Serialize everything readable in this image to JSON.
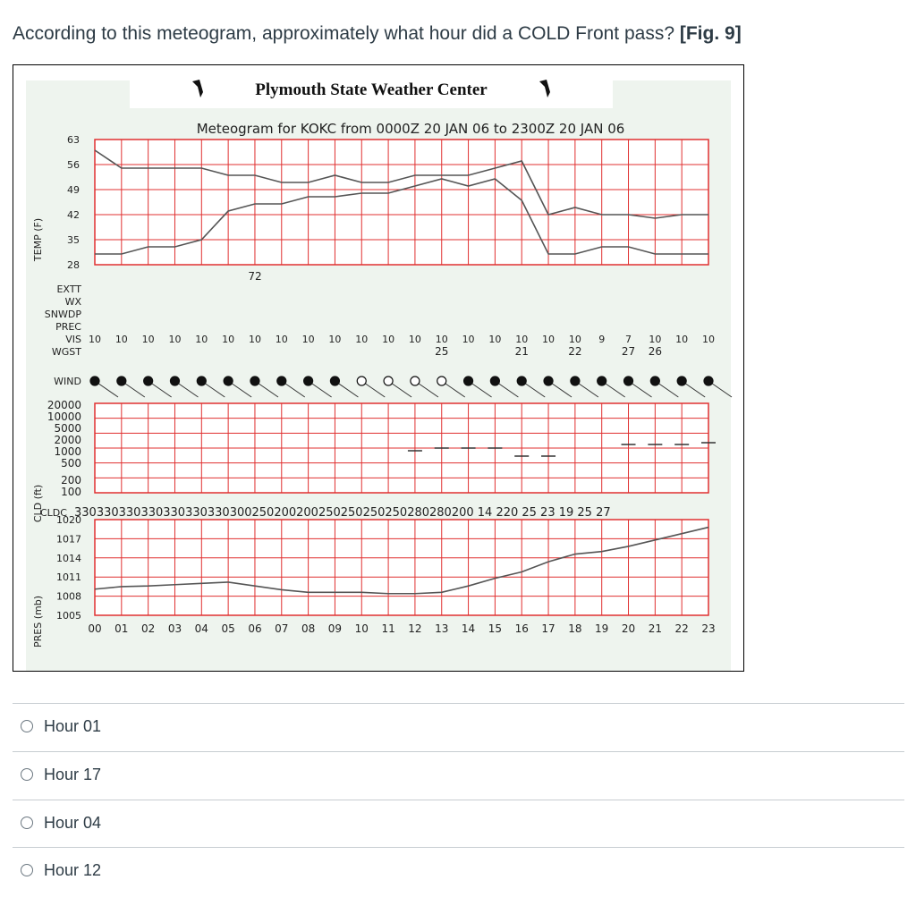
{
  "question": {
    "text": "According to this meteogram, approximately what hour did a COLD Front pass?",
    "ref": "[Fig. 9]"
  },
  "figure": {
    "header": "Plymouth State Weather Center",
    "title": "Meteogram for KOKC from 0000Z 20 JAN 06 to 2300Z 20 JAN 06",
    "temp_axis_label": "TEMP (F)",
    "temp_ticks": [
      "63",
      "56",
      "49",
      "42",
      "35",
      "28"
    ],
    "row_labels": [
      "EXTT",
      "WX",
      "SNWDP",
      "PREC",
      "VIS",
      "WGST",
      "WIND"
    ],
    "extt_value": "72",
    "vis_values": [
      "10",
      "10",
      "10",
      "10",
      "10",
      "10",
      "10",
      "10",
      "10",
      "10",
      "10",
      "10",
      "10",
      "10",
      "10",
      "10",
      "10",
      "10",
      "10",
      "9",
      "7",
      "10",
      "10",
      "10"
    ],
    "wgst_values": [
      {
        "hour": 13,
        "value": "25"
      },
      {
        "hour": 16,
        "value": "21"
      },
      {
        "hour": 18,
        "value": "22"
      },
      {
        "hour": 20,
        "value": "27"
      },
      {
        "hour": 21,
        "value": "26"
      }
    ],
    "cld_axis_label": "CLD (ft)",
    "cld_ticks": [
      "20000",
      "10000",
      "5000",
      "2000",
      "1000",
      "500",
      "200",
      "100"
    ],
    "cldc_label": "CLDC",
    "cldc_values": "330330330330330330330300250200200250250250250280280200 14 220 25 23 19 25 27",
    "pres_axis_label": "PRES (mb)",
    "pres_ticks": [
      "1020",
      "1017",
      "1014",
      "1011",
      "1008",
      "1005"
    ],
    "hours": [
      "00",
      "01",
      "02",
      "03",
      "04",
      "05",
      "06",
      "07",
      "08",
      "09",
      "10",
      "11",
      "12",
      "13",
      "14",
      "15",
      "16",
      "17",
      "18",
      "19",
      "20",
      "21",
      "22",
      "23"
    ],
    "colors": {
      "grid": "#e03030",
      "line": "#555555",
      "panel": "#eef4ee"
    }
  },
  "chart_data": {
    "type": "line",
    "title": "Meteogram for KOKC from 0000Z 20 JAN 06 to 2300Z 20 JAN 06",
    "x": [
      "00",
      "01",
      "02",
      "03",
      "04",
      "05",
      "06",
      "07",
      "08",
      "09",
      "10",
      "11",
      "12",
      "13",
      "14",
      "15",
      "16",
      "17",
      "18",
      "19",
      "20",
      "21",
      "22",
      "23"
    ],
    "temp": {
      "ylabel": "TEMP (F)",
      "ylim": [
        28,
        63
      ],
      "series": [
        {
          "values": [
            60,
            55,
            55,
            55,
            55,
            53,
            53,
            51,
            51,
            53,
            51,
            51,
            53,
            53,
            53,
            55,
            57,
            42,
            44,
            42,
            42,
            41,
            42,
            42
          ]
        },
        {
          "values": [
            31,
            31,
            33,
            33,
            35,
            43,
            45,
            45,
            47,
            47,
            48,
            48,
            50,
            52,
            50,
            52,
            46,
            31,
            31,
            33,
            33,
            31,
            31,
            31
          ]
        }
      ]
    },
    "pres": {
      "ylabel": "PRES (mb)",
      "ylim": [
        1005,
        1020
      ],
      "series": [
        {
          "values": [
            1009.1,
            1009.5,
            1009.6,
            1009.8,
            1010.0,
            1010.2,
            1009.6,
            1009.0,
            1008.6,
            1008.6,
            1008.6,
            1008.4,
            1008.4,
            1008.6,
            1009.6,
            1010.8,
            1011.8,
            1013.4,
            1014.6,
            1015.0,
            1015.8,
            1016.8,
            1017.8,
            1018.8
          ]
        }
      ]
    }
  },
  "answers": [
    {
      "label": "Hour 01"
    },
    {
      "label": "Hour 17"
    },
    {
      "label": "Hour 04"
    },
    {
      "label": "Hour 12"
    }
  ]
}
